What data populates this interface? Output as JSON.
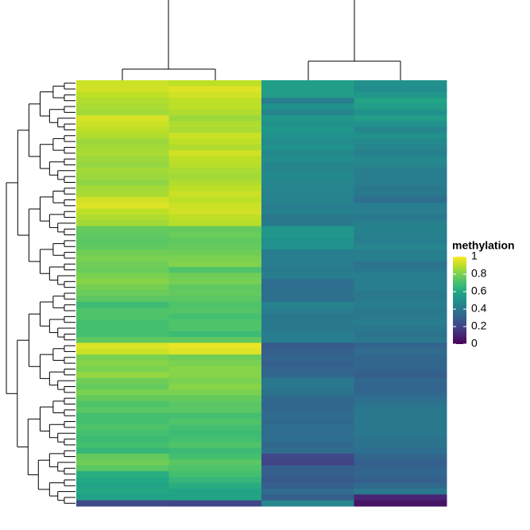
{
  "chart_data": {
    "type": "heatmap",
    "colorscale": "viridis",
    "zlim": [
      0,
      1
    ],
    "legend_title": "methylation",
    "legend_ticks": [
      1,
      0.8,
      0.6,
      0.4,
      0.2,
      0
    ],
    "values": [
      [
        0.92,
        0.9,
        0.55,
        0.5
      ],
      [
        0.93,
        0.95,
        0.55,
        0.48
      ],
      [
        0.9,
        0.93,
        0.55,
        0.52
      ],
      [
        0.88,
        0.9,
        0.42,
        0.58
      ],
      [
        0.87,
        0.9,
        0.5,
        0.55
      ],
      [
        0.86,
        0.88,
        0.45,
        0.5
      ],
      [
        0.94,
        0.85,
        0.52,
        0.55
      ],
      [
        0.92,
        0.88,
        0.5,
        0.5
      ],
      [
        0.9,
        0.87,
        0.52,
        0.45
      ],
      [
        0.88,
        0.92,
        0.5,
        0.5
      ],
      [
        0.85,
        0.9,
        0.48,
        0.47
      ],
      [
        0.86,
        0.88,
        0.5,
        0.45
      ],
      [
        0.87,
        0.93,
        0.47,
        0.43
      ],
      [
        0.85,
        0.9,
        0.48,
        0.47
      ],
      [
        0.84,
        0.89,
        0.46,
        0.45
      ],
      [
        0.86,
        0.87,
        0.45,
        0.42
      ],
      [
        0.85,
        0.86,
        0.47,
        0.42
      ],
      [
        0.83,
        0.88,
        0.46,
        0.42
      ],
      [
        0.86,
        0.9,
        0.45,
        0.4
      ],
      [
        0.87,
        0.92,
        0.44,
        0.4
      ],
      [
        0.93,
        0.9,
        0.44,
        0.36
      ],
      [
        0.95,
        0.92,
        0.42,
        0.42
      ],
      [
        0.9,
        0.93,
        0.43,
        0.42
      ],
      [
        0.88,
        0.9,
        0.4,
        0.4
      ],
      [
        0.86,
        0.89,
        0.41,
        0.43
      ],
      [
        0.76,
        0.76,
        0.52,
        0.44
      ],
      [
        0.75,
        0.77,
        0.52,
        0.43
      ],
      [
        0.74,
        0.75,
        0.5,
        0.42
      ],
      [
        0.75,
        0.76,
        0.5,
        0.45
      ],
      [
        0.78,
        0.78,
        0.42,
        0.42
      ],
      [
        0.8,
        0.8,
        0.42,
        0.43
      ],
      [
        0.78,
        0.81,
        0.42,
        0.38
      ],
      [
        0.77,
        0.72,
        0.41,
        0.4
      ],
      [
        0.8,
        0.78,
        0.42,
        0.42
      ],
      [
        0.82,
        0.79,
        0.36,
        0.42
      ],
      [
        0.79,
        0.75,
        0.36,
        0.42
      ],
      [
        0.77,
        0.76,
        0.37,
        0.4
      ],
      [
        0.74,
        0.74,
        0.36,
        0.41
      ],
      [
        0.68,
        0.72,
        0.44,
        0.42
      ],
      [
        0.72,
        0.73,
        0.42,
        0.4
      ],
      [
        0.72,
        0.7,
        0.4,
        0.41
      ],
      [
        0.7,
        0.72,
        0.41,
        0.42
      ],
      [
        0.7,
        0.72,
        0.4,
        0.4
      ],
      [
        0.7,
        0.68,
        0.42,
        0.38
      ],
      [
        0.75,
        0.75,
        0.42,
        0.4
      ],
      [
        0.95,
        0.97,
        0.28,
        0.32
      ],
      [
        0.92,
        0.95,
        0.3,
        0.35
      ],
      [
        0.8,
        0.78,
        0.32,
        0.33
      ],
      [
        0.82,
        0.8,
        0.3,
        0.33
      ],
      [
        0.8,
        0.82,
        0.32,
        0.32
      ],
      [
        0.84,
        0.82,
        0.33,
        0.3
      ],
      [
        0.78,
        0.8,
        0.4,
        0.33
      ],
      [
        0.76,
        0.82,
        0.4,
        0.32
      ],
      [
        0.8,
        0.8,
        0.38,
        0.33
      ],
      [
        0.76,
        0.76,
        0.34,
        0.36
      ],
      [
        0.72,
        0.74,
        0.33,
        0.38
      ],
      [
        0.74,
        0.74,
        0.34,
        0.4
      ],
      [
        0.7,
        0.7,
        0.35,
        0.4
      ],
      [
        0.7,
        0.72,
        0.34,
        0.4
      ],
      [
        0.72,
        0.7,
        0.36,
        0.4
      ],
      [
        0.7,
        0.68,
        0.35,
        0.4
      ],
      [
        0.68,
        0.7,
        0.36,
        0.38
      ],
      [
        0.7,
        0.72,
        0.34,
        0.38
      ],
      [
        0.66,
        0.68,
        0.35,
        0.36
      ],
      [
        0.76,
        0.7,
        0.22,
        0.33
      ],
      [
        0.78,
        0.74,
        0.2,
        0.3
      ],
      [
        0.74,
        0.72,
        0.3,
        0.32
      ],
      [
        0.62,
        0.7,
        0.3,
        0.33
      ],
      [
        0.6,
        0.66,
        0.28,
        0.3
      ],
      [
        0.58,
        0.62,
        0.3,
        0.34
      ],
      [
        0.6,
        0.58,
        0.35,
        0.4
      ],
      [
        0.56,
        0.58,
        0.3,
        0.1
      ],
      [
        0.22,
        0.2,
        0.45,
        0.05
      ]
    ]
  }
}
